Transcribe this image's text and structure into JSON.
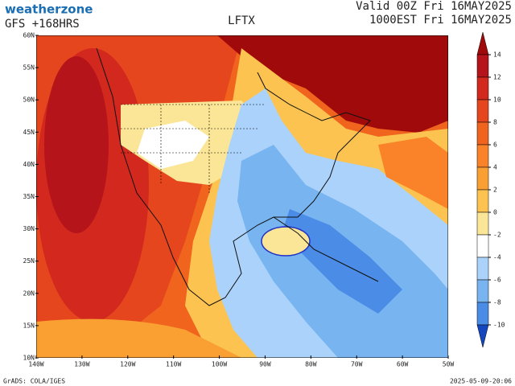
{
  "header": {
    "brand": "weatherzone",
    "model": "GFS +168HRS",
    "title": "LFTX",
    "valid": "Valid 00Z Fri 16MAY2025",
    "local": "1000EST Fri 16MAY2025"
  },
  "map": {
    "lat_labels": [
      "60N",
      "55N",
      "50N",
      "45N",
      "40N",
      "35N",
      "30N",
      "25N",
      "20N",
      "15N",
      "10N"
    ],
    "lon_labels": [
      "140W",
      "130W",
      "120W",
      "110W",
      "100W",
      "90W",
      "80W",
      "70W",
      "60W",
      "50W"
    ]
  },
  "colorbar": {
    "labels": [
      14,
      12,
      10,
      8,
      6,
      4,
      2,
      0,
      -2,
      -4,
      -6,
      -8,
      -10
    ],
    "colors": [
      "#a00a0a",
      "#b4141a",
      "#d2281e",
      "#e6461e",
      "#f0641e",
      "#fa8228",
      "#faa032",
      "#fcc350",
      "#fae696",
      "#ffffff",
      "#aad2fa",
      "#78b4f0",
      "#4b8ce6",
      "#2864d2",
      "#1446be"
    ]
  },
  "footer": {
    "source": "GrADS: COLA/IGES",
    "timestamp": "2025-05-09-20:06"
  }
}
